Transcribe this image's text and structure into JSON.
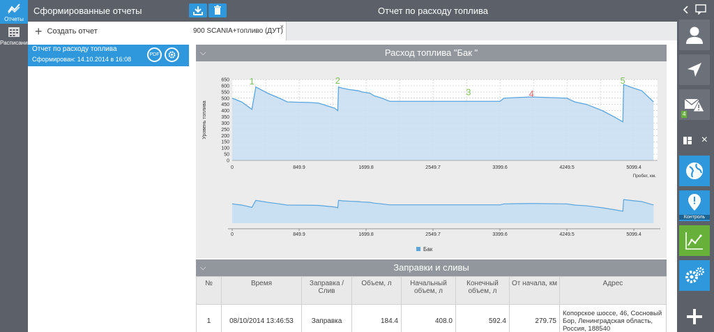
{
  "leftbar": {
    "items": [
      {
        "label": "Отчеты",
        "active": true
      },
      {
        "label": "Расписание",
        "active": false
      }
    ]
  },
  "listpanel": {
    "title": "Сформированные отчеты",
    "create_label": "Создать отчет",
    "report": {
      "name": "Отчет по расходу топлива",
      "generated": "Сформирован: 14.10.2014 в 16:08",
      "pdf_label": "PDF"
    }
  },
  "main": {
    "title": "Отчет по расходу топлива",
    "tab_label": "900 SCANIA+топливо (ДУТ)",
    "tab_close": "×"
  },
  "fuel_section": {
    "title": "Расход топлива \"Бак \"",
    "legend": "Бак",
    "xunit": "Пробег, км.",
    "ylabel": "Уровень топлива",
    "markers": [
      {
        "label": "1",
        "x": 250,
        "y": 610,
        "color": "#7dc35b"
      },
      {
        "label": "2",
        "x": 1340,
        "y": 615,
        "color": "#7dc35b"
      },
      {
        "label": "3",
        "x": 3000,
        "y": 525,
        "color": "#7dc35b"
      },
      {
        "label": "4",
        "x": 3800,
        "y": 510,
        "color": "#e86a6a"
      },
      {
        "label": "5",
        "x": 4960,
        "y": 615,
        "color": "#7dc35b"
      }
    ]
  },
  "chart_data": {
    "type": "area",
    "title": "Расход топлива \"Бак \"",
    "xlabel": "Пробег, км.",
    "ylabel": "Уровень топлива",
    "xlim": [
      0,
      5400
    ],
    "ylim": [
      0,
      650
    ],
    "x_ticks": [
      "0",
      "849.9",
      "1699.8",
      "2549.7",
      "3399.6",
      "4249.5",
      "5099.4"
    ],
    "y_ticks": [
      "0",
      "50",
      "100",
      "150",
      "200",
      "250",
      "300",
      "350",
      "400",
      "450",
      "500",
      "550",
      "600",
      "650"
    ],
    "series": [
      {
        "name": "Бак",
        "color": "#5aa5de",
        "x": [
          0,
          120,
          230,
          250,
          300,
          450,
          600,
          700,
          1000,
          1100,
          1200,
          1300,
          1340,
          1350,
          1400,
          1480,
          1600,
          1650,
          1750,
          1800,
          1900,
          2000,
          2500,
          3000,
          3400,
          3450,
          3600,
          3800,
          4250,
          4350,
          4500,
          4700,
          4850,
          4960,
          4970,
          5100,
          5200,
          5350
        ],
        "values": [
          500,
          470,
          420,
          410,
          590,
          540,
          500,
          470,
          465,
          460,
          440,
          420,
          400,
          590,
          580,
          570,
          560,
          550,
          540,
          520,
          500,
          475,
          475,
          475,
          475,
          500,
          505,
          510,
          500,
          470,
          450,
          400,
          350,
          310,
          610,
          580,
          560,
          470
        ]
      }
    ],
    "legend": [
      "Бак"
    ]
  },
  "refuel_section": {
    "title": "Заправки и сливы",
    "columns": [
      "№",
      "Время",
      "Заправка / Слив",
      "Объем, л",
      "Начальный объем, л",
      "Конечный объем, л",
      "От начала, км",
      "Адрес"
    ],
    "rows": [
      [
        "1",
        "08/10/2014 13:46:53",
        "Заправка",
        "184.4",
        "408.0",
        "592.4",
        "279.75",
        "Копорское шоссе, 46, Сосновый Бор, Ленинградская область, Россия, 188540"
      ]
    ]
  },
  "rightbar": {
    "badge": "4",
    "control_label": "Контроль",
    "collapse_label": "×"
  },
  "colors": {
    "accent": "#2f98dd",
    "dark": "#5c6068",
    "green": "#67b13a",
    "area": "#c9dff2",
    "line": "#5aa5de"
  }
}
